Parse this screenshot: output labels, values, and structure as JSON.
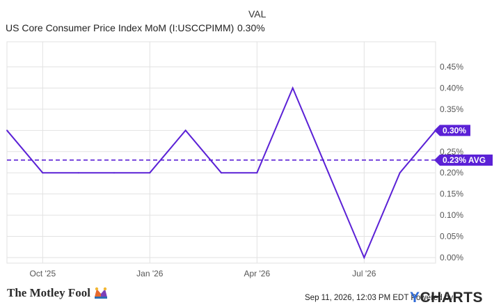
{
  "legend": {
    "column_header": "VAL",
    "series_name": "US Core Consumer Price Index MoM (I:USCCPIMM)",
    "series_value": "0.30%"
  },
  "footer": {
    "brand": "The Motley Fool",
    "timestamp": "Sep 11, 2026, 12:03 PM EDT  Powered by",
    "powered_by_logo": "YCHARTS"
  },
  "colors": {
    "series": "#5b21d6",
    "grid": "#e2e2e2",
    "tick_text": "#555555"
  },
  "chart_data": {
    "type": "line",
    "series": [
      {
        "name": "US Core Consumer Price Index MoM (I:USCCPIMM)",
        "x": [
          "2025-09",
          "2025-10",
          "2025-11",
          "2025-12",
          "2026-01",
          "2026-02",
          "2026-03",
          "2026-04",
          "2026-05",
          "2026-06",
          "2026-07",
          "2026-08",
          "2026-09"
        ],
        "values": [
          0.3,
          0.2,
          0.2,
          0.2,
          0.2,
          0.3,
          0.2,
          0.2,
          0.4,
          0.2,
          0.0,
          0.2,
          0.3
        ]
      }
    ],
    "average": 0.23,
    "end_label": "0.30%",
    "avg_label": "0.23% AVG",
    "x_ticks": [
      {
        "date": "2025-10",
        "label": "Oct '25"
      },
      {
        "date": "2026-01",
        "label": "Jan '26"
      },
      {
        "date": "2026-04",
        "label": "Apr '26"
      },
      {
        "date": "2026-07",
        "label": "Jul '26"
      }
    ],
    "y_ticks": [
      {
        "value": 0.0,
        "label": "0.00%"
      },
      {
        "value": 0.05,
        "label": "0.05%"
      },
      {
        "value": 0.1,
        "label": "0.10%"
      },
      {
        "value": 0.15,
        "label": "0.15%"
      },
      {
        "value": 0.2,
        "label": "0.20%"
      },
      {
        "value": 0.25,
        "label": "0.25%"
      },
      {
        "value": 0.3,
        "label": "0.30%"
      },
      {
        "value": 0.35,
        "label": "0.35%"
      },
      {
        "value": 0.4,
        "label": "0.40%"
      },
      {
        "value": 0.45,
        "label": "0.45%"
      }
    ],
    "ylim": [
      0.0,
      0.45
    ],
    "grid": true,
    "y_axis_side": "right"
  }
}
